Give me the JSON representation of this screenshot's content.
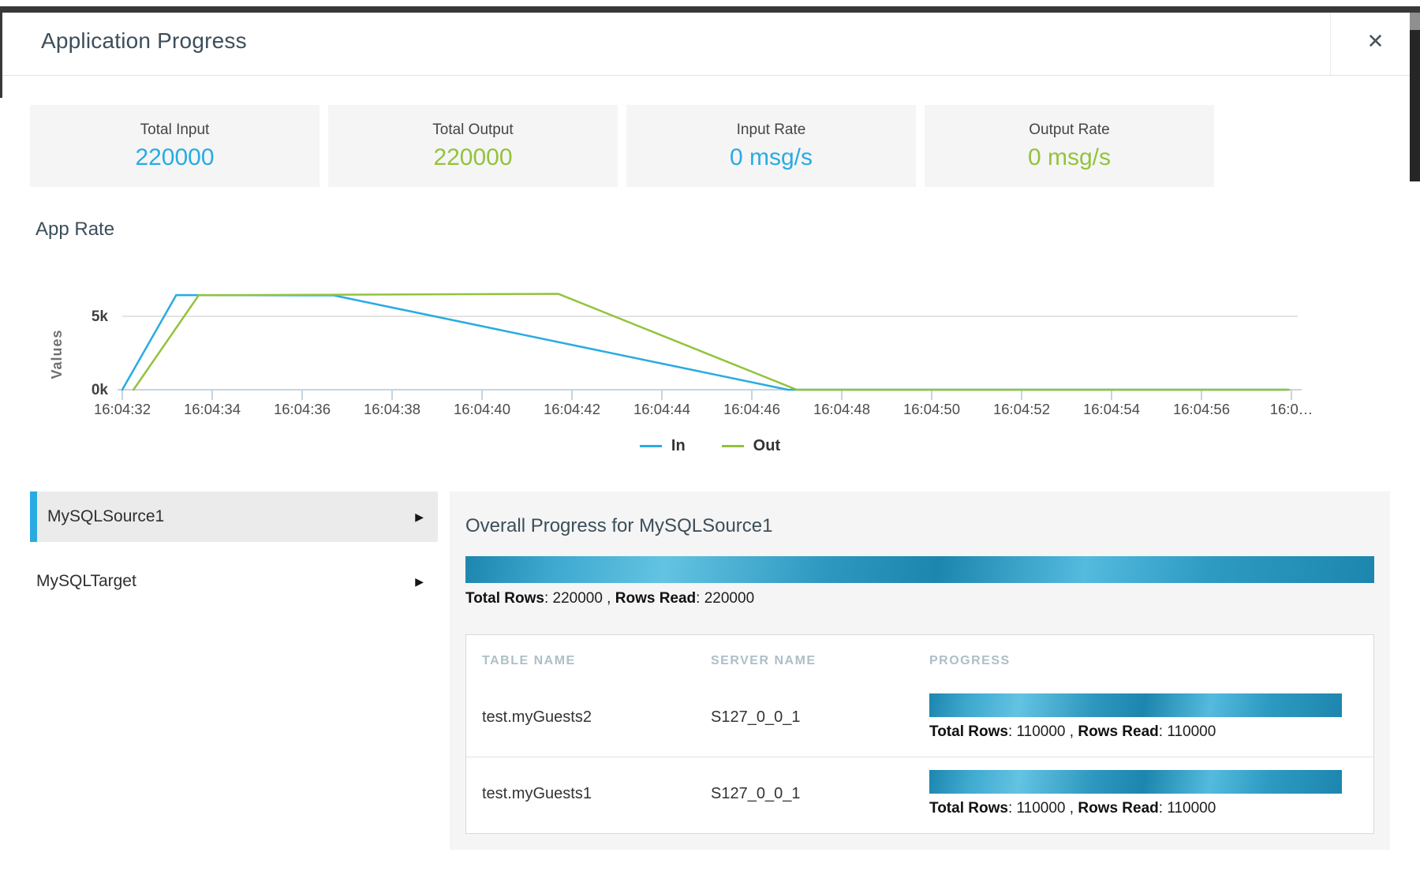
{
  "modal": {
    "title": "Application Progress",
    "close_glyph": "✕"
  },
  "colors": {
    "accent_blue": "#29abe2",
    "accent_green": "#94c23d"
  },
  "labels": {
    "colon": ": ",
    "comma": " , "
  },
  "stats": [
    {
      "label": "Total Input",
      "value": "220000",
      "color": "#29abe2"
    },
    {
      "label": "Total Output",
      "value": "220000",
      "color": "#94c23d"
    },
    {
      "label": "Input Rate",
      "value": "0 msg/s",
      "color": "#29abe2"
    },
    {
      "label": "Output Rate",
      "value": "0 msg/s",
      "color": "#94c23d"
    }
  ],
  "chart_data": {
    "type": "line",
    "title": "App Rate",
    "ylabel": "Values",
    "grid": "horizontal-only",
    "ylim": [
      0,
      7300
    ],
    "yticks": [
      {
        "label": "0k",
        "value": 0
      },
      {
        "label": "5k",
        "value": 5000
      }
    ],
    "x_origin_time": "16:04:32",
    "x_spacing_seconds": 2,
    "x_tick_labels": [
      "16:04:32",
      "16:04:34",
      "16:04:36",
      "16:04:38",
      "16:04:40",
      "16:04:42",
      "16:04:44",
      "16:04:46",
      "16:04:48",
      "16:04:50",
      "16:04:52",
      "16:04:54",
      "16:04:56",
      "16:0…"
    ],
    "points_format": "[seconds_after_origin, value]",
    "series": [
      {
        "name": "In",
        "color": "#29abe2",
        "points": [
          [
            0,
            0
          ],
          [
            1.2,
            6450
          ],
          [
            4.7,
            6430
          ],
          [
            14.8,
            0
          ],
          [
            25.9,
            0
          ]
        ]
      },
      {
        "name": "Out",
        "color": "#94c23d",
        "points": [
          [
            0.25,
            0
          ],
          [
            1.7,
            6440
          ],
          [
            9.7,
            6530
          ],
          [
            15.0,
            0
          ],
          [
            25.95,
            0
          ]
        ]
      }
    ],
    "legend": [
      {
        "label": "In",
        "color": "#29abe2"
      },
      {
        "label": "Out",
        "color": "#94c23d"
      }
    ],
    "legend_position": "bottom-center"
  },
  "sources": {
    "arrow": "▶",
    "items": [
      {
        "label": "MySQLSource1",
        "selected": true
      },
      {
        "label": "MySQLTarget",
        "selected": false
      }
    ]
  },
  "overall": {
    "heading": "Overall Progress for MySQLSource1",
    "progress_percent": 100,
    "total_rows_label": "Total Rows",
    "total_rows": "220000",
    "rows_read_label": "Rows Read",
    "rows_read": "220000"
  },
  "table": {
    "headers": [
      "TABLE NAME",
      "SERVER NAME",
      "PROGRESS"
    ],
    "rows": [
      {
        "table": "test.myGuests2",
        "server": "S127_0_0_1",
        "progress_percent": 100,
        "total_rows_label": "Total Rows",
        "total_rows": "110000",
        "rows_read_label": "Rows Read",
        "rows_read": "110000"
      },
      {
        "table": "test.myGuests1",
        "server": "S127_0_0_1",
        "progress_percent": 100,
        "total_rows_label": "Total Rows",
        "total_rows": "110000",
        "rows_read_label": "Rows Read",
        "rows_read": "110000"
      }
    ]
  }
}
